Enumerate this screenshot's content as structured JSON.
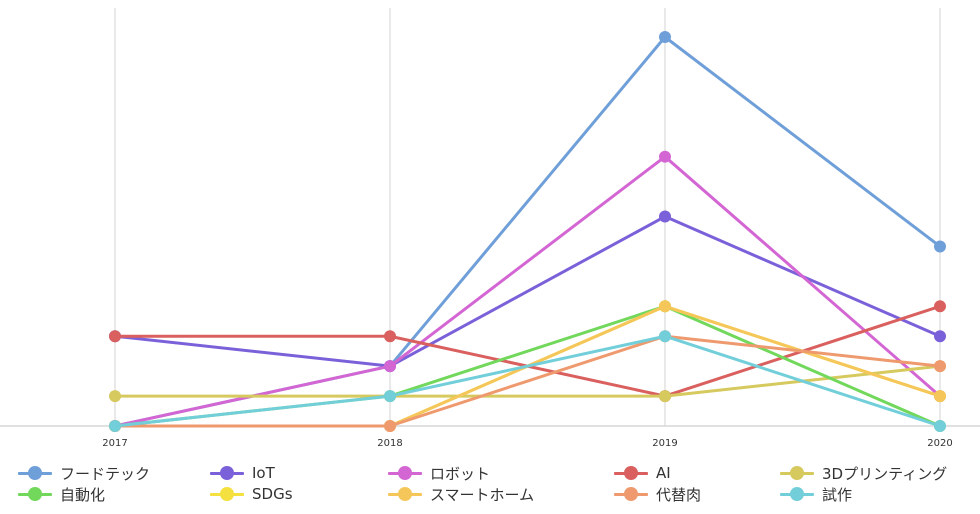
{
  "chart_data": {
    "type": "line",
    "x": [
      "2017",
      "2018",
      "2019",
      "2020"
    ],
    "ylim": [
      0,
      13
    ],
    "grid": "vertical",
    "legend_position": "bottom",
    "series": [
      {
        "name": "フードテック",
        "color": "#6f9fd8",
        "values": [
          0,
          2,
          13,
          6
        ]
      },
      {
        "name": "IoT",
        "color": "#7b61d9",
        "values": [
          3,
          2,
          7,
          3
        ]
      },
      {
        "name": "ロボット",
        "color": "#d466d4",
        "values": [
          0,
          2,
          9,
          1
        ]
      },
      {
        "name": "AI",
        "color": "#d9605f",
        "values": [
          3,
          3,
          1,
          4
        ]
      },
      {
        "name": "3Dプリンティング",
        "color": "#d6c95e",
        "values": [
          1,
          1,
          1,
          2
        ]
      },
      {
        "name": "自動化",
        "color": "#72d85c",
        "values": [
          0,
          1,
          4,
          0
        ]
      },
      {
        "name": "SDGs",
        "color": "#f4e03e",
        "values": [
          0,
          0,
          4,
          1
        ]
      },
      {
        "name": "スマートホーム",
        "color": "#f5c65a",
        "values": [
          0,
          0,
          4,
          1
        ]
      },
      {
        "name": "代替肉",
        "color": "#ee9a6e",
        "values": [
          0,
          0,
          3,
          2
        ]
      },
      {
        "name": "試作",
        "color": "#72cfda",
        "values": [
          0,
          1,
          3,
          0
        ]
      }
    ]
  }
}
